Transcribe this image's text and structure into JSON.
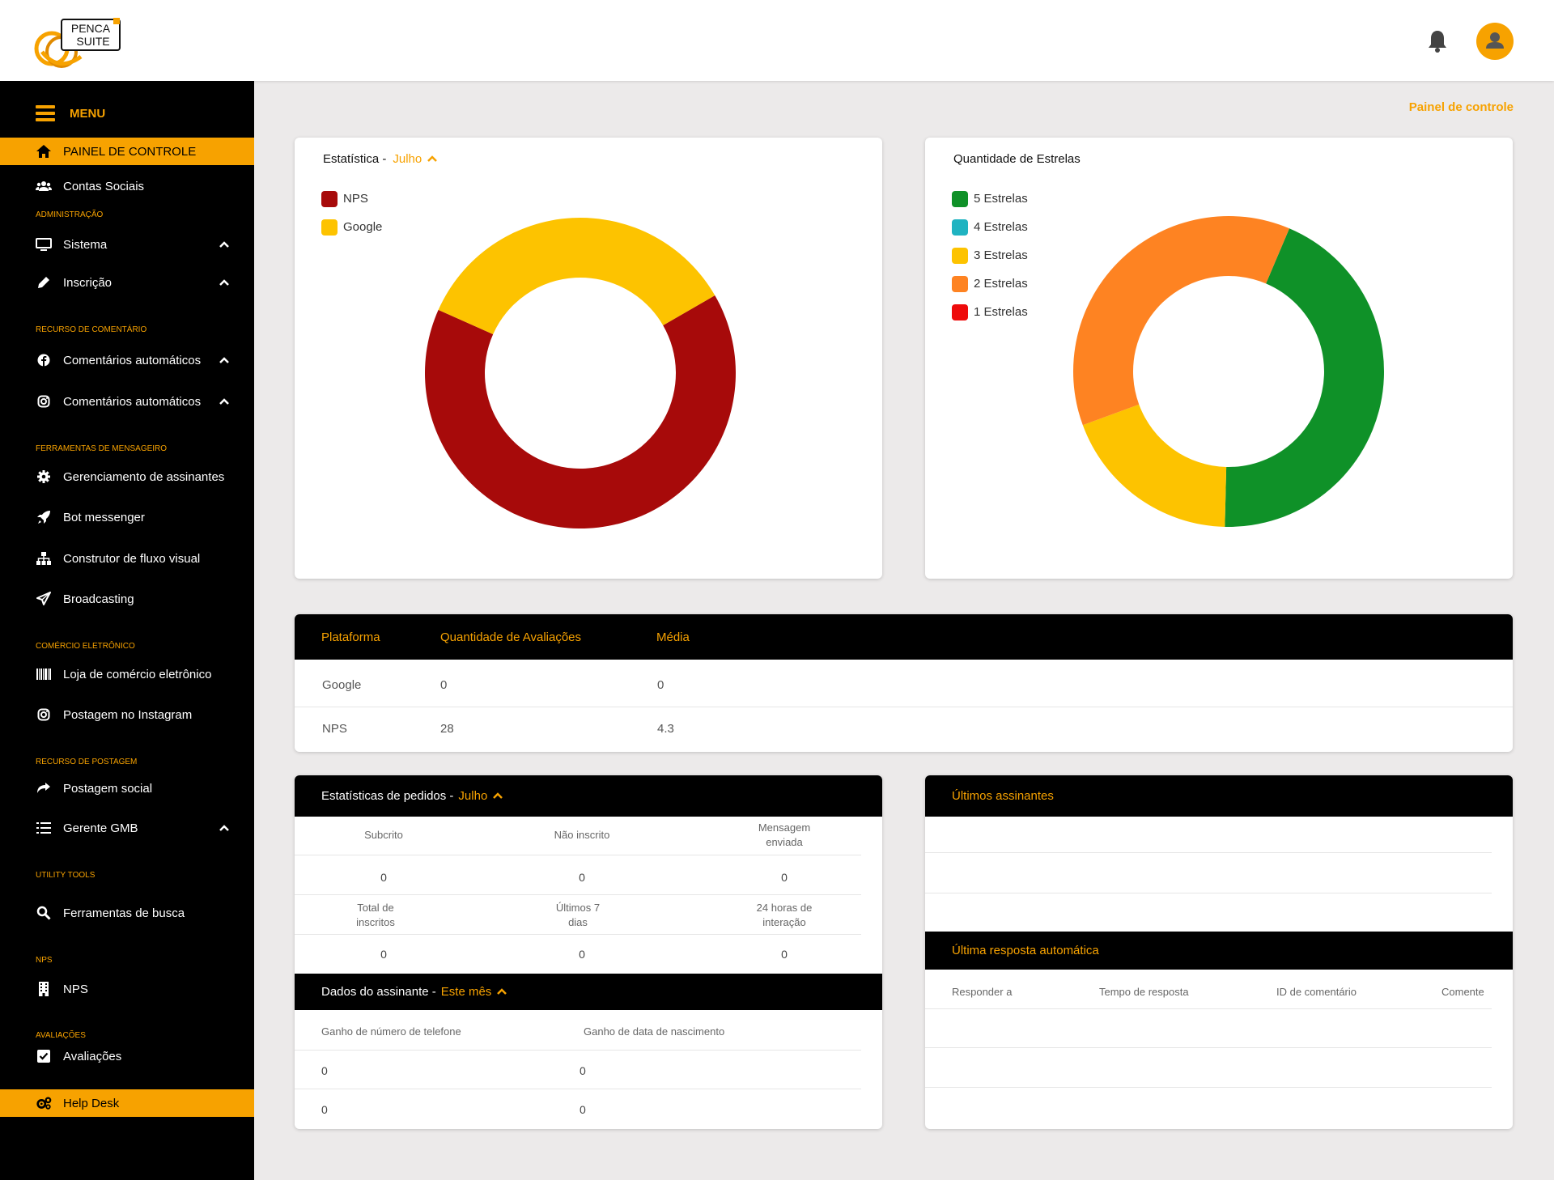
{
  "brand": {
    "logo_line1": "PENCA",
    "logo_line2": "SUITE"
  },
  "header": {
    "breadcrumb": "Painel de controle"
  },
  "sidebar": {
    "menu_label": "MENU",
    "dashboard": "PAINEL DE CONTROLE",
    "social_accounts": "Contas Sociais",
    "sections": {
      "admin": "ADMINISTRAÇÃO",
      "comment": "RECURSO DE COMENTÁRIO",
      "messenger": "FERRAMENTAS DE MENSAGEIRO",
      "ecommerce": "COMÉRCIO ELETRÔNICO",
      "posting": "RECURSO DE POSTAGEM",
      "utility": "UTILITY TOOLS",
      "nps": "NPS",
      "reviews": "AVALIAÇÕES"
    },
    "items": {
      "system": "Sistema",
      "subscription": "Inscrição",
      "auto_comments_fb": "Comentários automáticos",
      "auto_comments_ig": "Comentários automáticos",
      "subscriber_mgmt": "Gerenciamento de assinantes",
      "bot_messenger": "Bot messenger",
      "flow_builder": "Construtor de fluxo visual",
      "broadcasting": "Broadcasting",
      "ecommerce_store": "Loja de comércio eletrônico",
      "instagram_post": "Postagem no Instagram",
      "social_post": "Postagem social",
      "gmb_manager": "Gerente GMB",
      "search_tools": "Ferramentas de busca",
      "nps": "NPS",
      "reviews": "Avaliações",
      "help_desk": "Help Desk"
    }
  },
  "stats_card": {
    "title": "Estatística -",
    "period": "Julho",
    "legend": [
      "NPS",
      "Google"
    ]
  },
  "stars_card": {
    "title": "Quantidade de Estrelas",
    "legend": [
      "5 Estrelas",
      "4 Estrelas",
      "3 Estrelas",
      "2 Estrelas",
      "1 Estrelas"
    ]
  },
  "chart_data": [
    {
      "type": "pie",
      "title": "Estatística - Julho",
      "labels": [
        "NPS",
        "Google"
      ],
      "values": [
        65,
        35
      ],
      "colors": [
        "#a70a0a",
        "#fdc300"
      ]
    },
    {
      "type": "pie",
      "title": "Quantidade de Estrelas",
      "labels": [
        "5 Estrelas",
        "4 Estrelas",
        "3 Estrelas",
        "2 Estrelas",
        "1 Estrelas"
      ],
      "values": [
        44,
        0,
        19,
        37,
        0
      ],
      "colors": [
        "#0f9128",
        "#1fb3c1",
        "#fdc300",
        "#fe8322",
        "#ee0b0b"
      ]
    }
  ],
  "platform_table": {
    "headers": [
      "Plataforma",
      "Quantidade de Avaliações",
      "Média"
    ],
    "rows": [
      [
        "Google",
        "0",
        "0"
      ],
      [
        "NPS",
        "28",
        "4.3"
      ]
    ]
  },
  "orders": {
    "title": "Estatísticas de pedidos -",
    "period": "Julho",
    "row1_labels": [
      "Subcrito",
      "Não inscrito",
      "Mensagem enviada"
    ],
    "row1_values": [
      "0",
      "0",
      "0"
    ],
    "row2_labels": [
      "Total de inscritos",
      "Últimos 7 dias",
      "24 horas de interação"
    ],
    "row2_values": [
      "0",
      "0",
      "0"
    ]
  },
  "subscriber_data": {
    "title": "Dados do assinante -",
    "period": "Este mês",
    "headers": [
      "Ganho de número de telefone",
      "Ganho de data de nascimento"
    ],
    "rows": [
      [
        "0",
        "0"
      ],
      [
        "0",
        "0"
      ]
    ]
  },
  "latest_subscribers": {
    "title": "Últimos assinantes"
  },
  "latest_auto_reply": {
    "title": "Última resposta automática",
    "headers": [
      "Responder a",
      "Tempo de resposta",
      "ID de comentário",
      "Comente"
    ]
  }
}
